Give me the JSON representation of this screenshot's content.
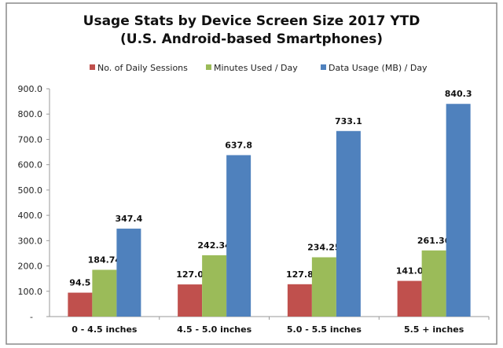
{
  "chart_data": {
    "type": "bar",
    "title": "Usage Stats by Device Screen Size 2017 YTD",
    "subtitle": "(U.S. Android-based Smartphones)",
    "categories": [
      "0 - 4.5 inches",
      "4.5 - 5.0 inches",
      "5.0 - 5.5 inches",
      "5.5 + inches"
    ],
    "series": [
      {
        "name": "No. of Daily Sessions",
        "color": "#c0504d",
        "values": [
          94.5,
          127.0,
          127.8,
          141.0
        ],
        "labels": [
          "94.5",
          "127.0",
          "127.8",
          "141.0"
        ]
      },
      {
        "name": "Minutes Used / Day",
        "color": "#9bbb59",
        "values": [
          184.74,
          242.34,
          234.25,
          261.36
        ],
        "labels": [
          "184.74",
          "242.34",
          "234.25",
          "261.36"
        ]
      },
      {
        "name": "Data Usage (MB) / Day",
        "color": "#4f81bd",
        "values": [
          347.4,
          637.8,
          733.1,
          840.3
        ],
        "labels": [
          "347.4",
          "637.8",
          "733.1",
          "840.3"
        ]
      }
    ],
    "ylim": [
      0,
      900
    ],
    "yticks": [
      "-",
      "100.0",
      "200.0",
      "300.0",
      "400.0",
      "500.0",
      "600.0",
      "700.0",
      "800.0",
      "900.0"
    ],
    "grid": false,
    "legend_position": "top"
  }
}
